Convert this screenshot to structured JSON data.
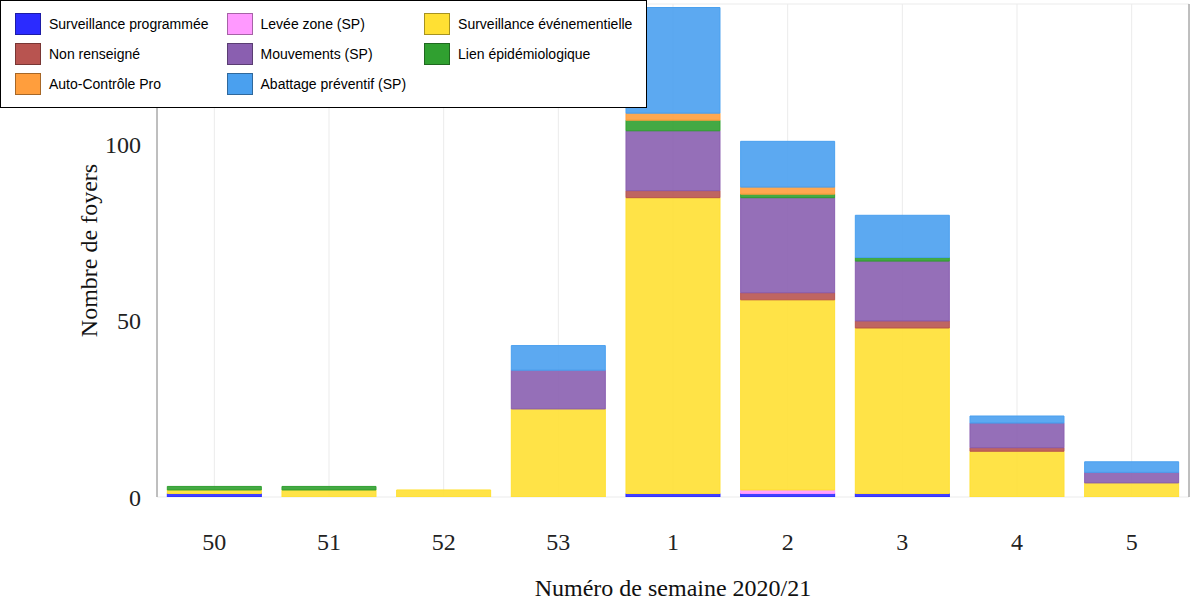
{
  "chart_data": {
    "type": "bar",
    "stacked": true,
    "grid": true,
    "legend": "upper left",
    "x_label": "Numéro de semaine 2020/21",
    "y_label": "Nombre de foyers",
    "categories": [
      "50",
      "51",
      "52",
      "53",
      "1",
      "2",
      "3",
      "4",
      "5"
    ],
    "ylim": [
      0,
      140
    ],
    "yticks": [
      0,
      50,
      100
    ],
    "series": [
      {
        "name": "Surveillance programmée",
        "color": "#2b2bff",
        "values": [
          1,
          0,
          0,
          0,
          1,
          1,
          1,
          0,
          0
        ]
      },
      {
        "name": "Levée zone (SP)",
        "color": "#ff99ff",
        "values": [
          0,
          0,
          0,
          0,
          0,
          1,
          0,
          0,
          0
        ]
      },
      {
        "name": "Surveillance événementielle",
        "color": "#ffe033",
        "values": [
          1,
          2,
          2,
          25,
          84,
          54,
          47,
          13,
          4
        ]
      },
      {
        "name": "Non renseigné",
        "color": "#b85450",
        "values": [
          0,
          0,
          0,
          0,
          2,
          2,
          2,
          1,
          0
        ]
      },
      {
        "name": "Mouvements (SP)",
        "color": "#8a5fb0",
        "values": [
          0,
          0,
          0,
          11,
          17,
          27,
          17,
          7,
          3
        ]
      },
      {
        "name": "Lien épidémiologique",
        "color": "#30a030",
        "values": [
          1,
          1,
          0,
          0,
          3,
          1,
          1,
          0,
          0
        ]
      },
      {
        "name": "Auto-Contrôle Pro",
        "color": "#ff9e3d",
        "values": [
          0,
          0,
          0,
          0,
          2,
          2,
          0,
          0,
          0
        ]
      },
      {
        "name": "Abattage préventif (SP)",
        "color": "#4aa0ef",
        "values": [
          0,
          0,
          0,
          7,
          30,
          13,
          12,
          2,
          3
        ]
      }
    ]
  }
}
